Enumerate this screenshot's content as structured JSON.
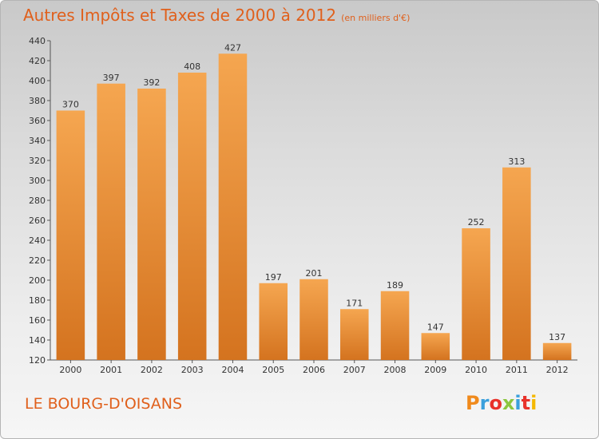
{
  "header": {
    "title": "Autres Impôts et Taxes de 2000 à 2012",
    "unit": "(en milliers d'€)"
  },
  "footer": {
    "commune": "LE BOURG-D'OISANS",
    "logo_letters": [
      "P",
      "r",
      "o",
      "x",
      "i",
      "t",
      "i"
    ],
    "logo_colors": [
      "#f08a1c",
      "#3aa0dc",
      "#e8322a",
      "#8cc63f",
      "#3aa0dc",
      "#e8322a",
      "#f5b800"
    ]
  },
  "colors": {
    "bar_light": "#f5a650",
    "bar_dark": "#d4731f",
    "title": "#e0601c"
  },
  "chart_data": {
    "type": "bar",
    "title": "Autres Impôts et Taxes de 2000 à 2012",
    "subtitle": "(en milliers d'€)",
    "categories": [
      "2000",
      "2001",
      "2002",
      "2003",
      "2004",
      "2005",
      "2006",
      "2007",
      "2008",
      "2009",
      "2010",
      "2011",
      "2012"
    ],
    "values": [
      370,
      397,
      392,
      408,
      427,
      197,
      201,
      171,
      189,
      147,
      252,
      313,
      137
    ],
    "ylim": [
      120,
      440
    ],
    "yticks": [
      120,
      140,
      160,
      180,
      200,
      220,
      240,
      260,
      280,
      300,
      320,
      340,
      360,
      380,
      400,
      420,
      440
    ],
    "xlabel": "",
    "ylabel": "",
    "grid": false,
    "data_labels": true
  }
}
